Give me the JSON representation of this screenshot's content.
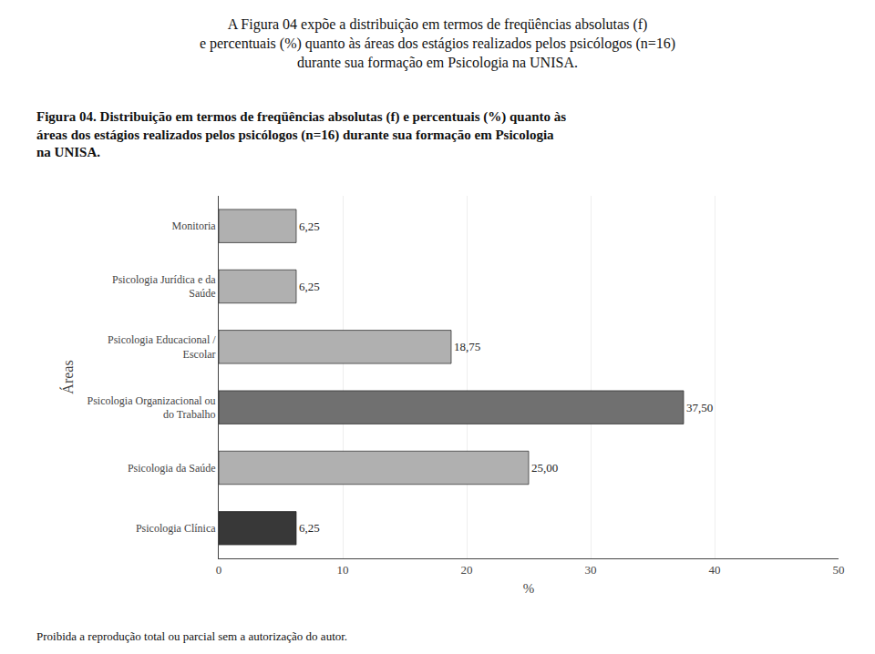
{
  "chart_data": {
    "type": "bar",
    "orientation": "horizontal",
    "subtitle": "A Figura 04 expõe a distribuição em termos de freqüências absolutas (f)\ne percentuais (%) quanto às áreas dos estágios realizados pelos psicólogos (n=16)\ndurante sua formação em Psicologia na UNISA.",
    "title": "Figura 04. Distribuição em termos de freqüências absolutas (f) e percentuais (%) quanto às\náreas dos estágios realizados pelos psicólogos (n=16) durante sua formação em Psicologia\nna UNISA.",
    "annotations": [
      {
        "text": "Proibida a reprodução total ou parcial sem a autorização do autor."
      }
    ],
    "categories": [
      "Monitoria",
      "Psicologia Jurídica e da\nSaúde",
      "Psicologia Educacional /\nEscolar",
      "Psicologia Organizacional ou\ndo Trabalho",
      "Psicologia da Saúde",
      "Psicologia Clínica"
    ],
    "values": [
      6.25,
      6.25,
      18.75,
      37.5,
      25.0,
      6.25
    ],
    "value_labels": [
      "6,25",
      "6,25",
      "18,75",
      "37,50",
      "25,00",
      "6,25"
    ],
    "colors": [
      "#b0b0b0",
      "#b0b0b0",
      "#b0b0b0",
      "#707070",
      "#b0b0b0",
      "#383838"
    ],
    "xlabel": "%",
    "ylabel": "Áreas",
    "xlim": [
      0,
      50
    ],
    "xticks": [
      0,
      10,
      20,
      30,
      40,
      50
    ],
    "grid": true
  }
}
